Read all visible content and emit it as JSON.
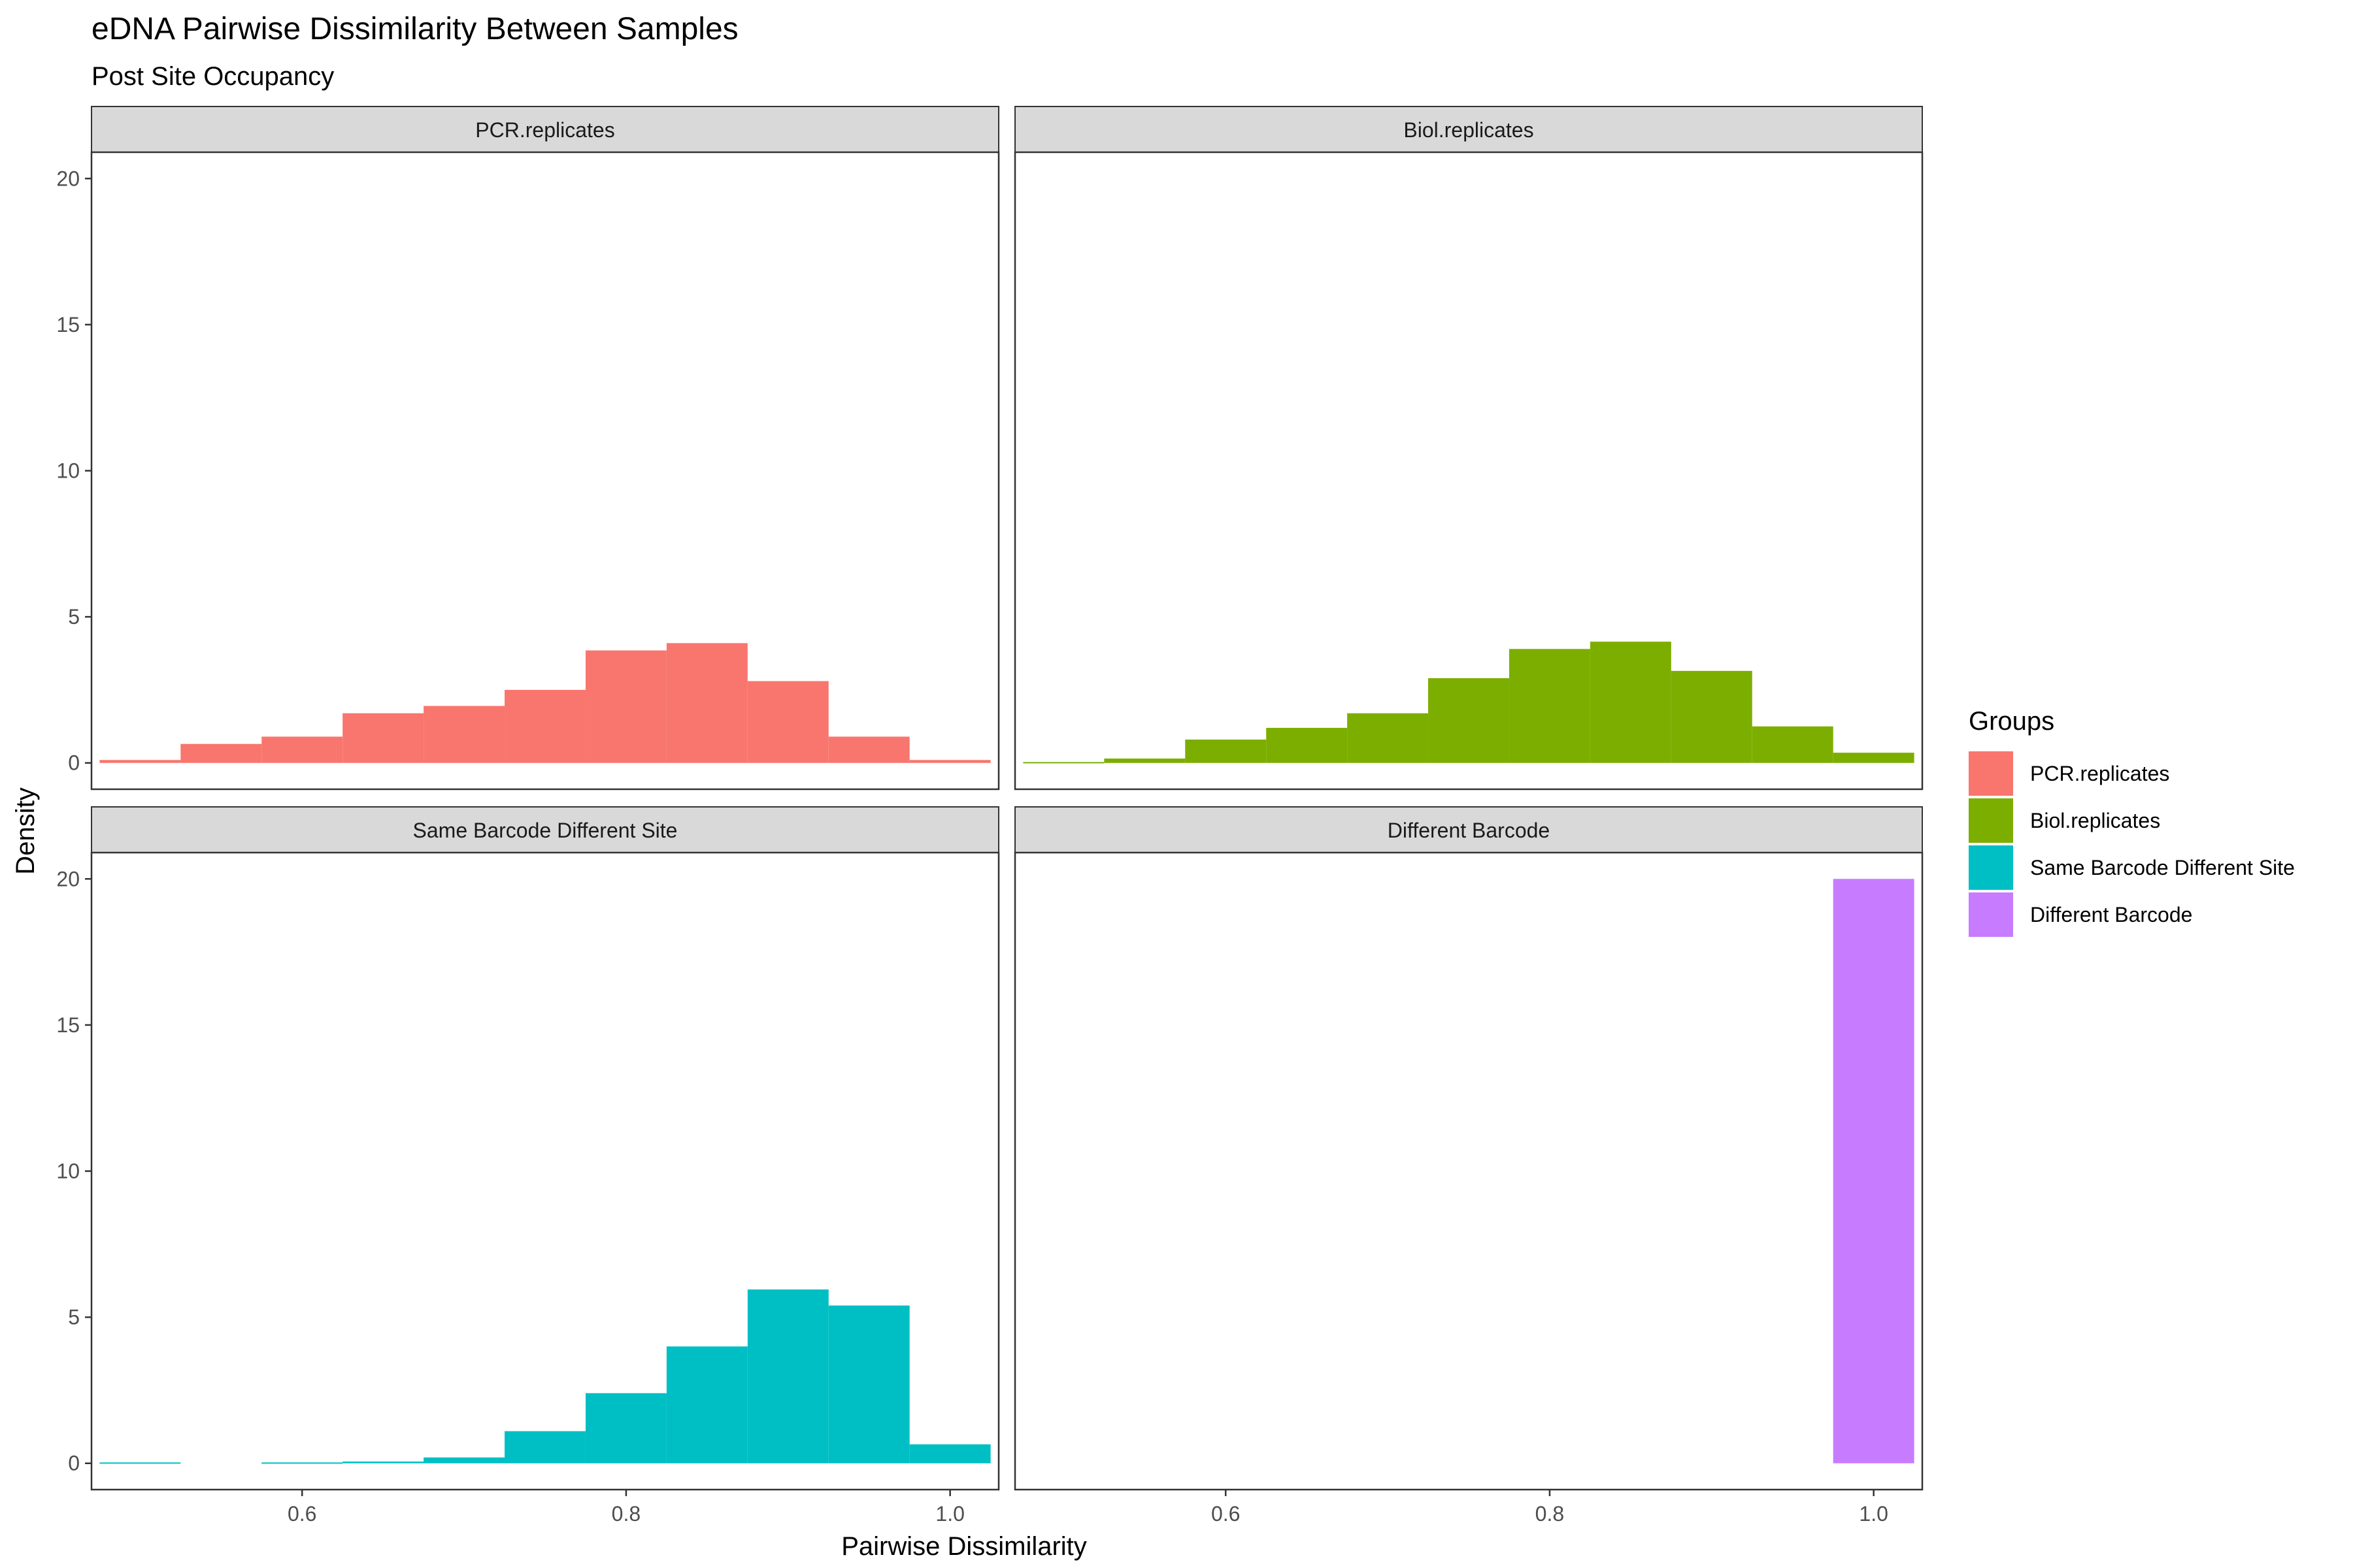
{
  "chart_data": {
    "type": "bar",
    "title": "eDNA Pairwise Dissimilarity Between Samples",
    "subtitle": "Post Site Occupancy",
    "xlabel": "Pairwise Dissimilarity",
    "ylabel": "Density",
    "xlim": [
      0.47,
      1.03
    ],
    "ylim": [
      -0.9,
      20.9
    ],
    "x_ticks": [
      0.6,
      0.8,
      1.0
    ],
    "x_tick_labels": [
      "0.6",
      "0.8",
      "1.0"
    ],
    "y_ticks": [
      0,
      5,
      10,
      15,
      20
    ],
    "y_tick_labels": [
      "0",
      "5",
      "10",
      "15",
      "20"
    ],
    "bin_width": 0.05,
    "bin_centers": [
      0.5,
      0.55,
      0.6,
      0.65,
      0.7,
      0.75,
      0.8,
      0.85,
      0.9,
      0.95,
      1.0
    ],
    "legend_title": "Groups",
    "legend_position": "right",
    "series": [
      {
        "name": "PCR.replicates",
        "color": "#F8766D",
        "values": [
          0.1,
          0.65,
          0.9,
          1.7,
          1.95,
          2.5,
          3.85,
          4.1,
          2.8,
          0.9,
          0.1
        ]
      },
      {
        "name": "Biol.replicates",
        "color": "#7CAE00",
        "values": [
          0.03,
          0.15,
          0.8,
          1.2,
          1.7,
          2.9,
          3.9,
          4.15,
          3.15,
          1.25,
          0.35
        ]
      },
      {
        "name": "Same Barcode Different Site",
        "color": "#00BFC4",
        "values": [
          0.03,
          0,
          0.03,
          0.06,
          0.2,
          1.1,
          2.4,
          4.0,
          5.95,
          5.4,
          0.65
        ]
      },
      {
        "name": "Different Barcode",
        "color": "#C77CFF",
        "values": [
          0,
          0,
          0,
          0,
          0,
          0,
          0,
          0,
          0,
          0,
          20.0
        ]
      }
    ],
    "panels": [
      {
        "strip": "PCR.replicates",
        "series": 0
      },
      {
        "strip": "Biol.replicates",
        "series": 1
      },
      {
        "strip": "Same Barcode Different Site",
        "series": 2
      },
      {
        "strip": "Different Barcode",
        "series": 3
      }
    ]
  }
}
